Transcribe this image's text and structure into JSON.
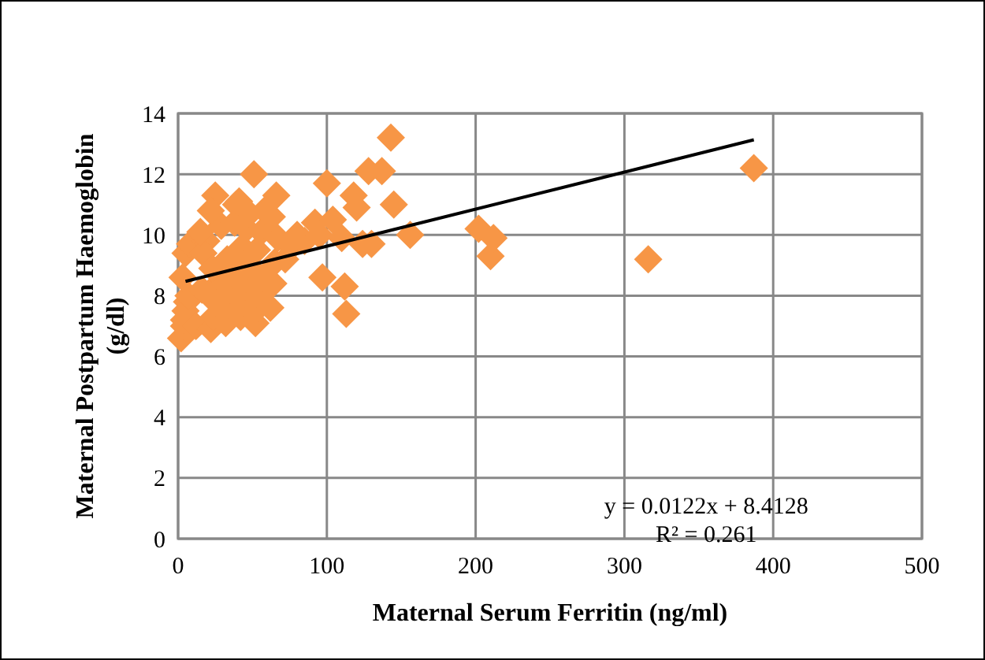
{
  "chart_data": {
    "type": "scatter",
    "xlabel": "Maternal Serum Ferritin (ng/ml)",
    "ylabel": "Maternal Postpartum Haemoglobin (g/dl)",
    "xlim": [
      0,
      500
    ],
    "ylim": [
      0,
      14
    ],
    "xticks": [
      0,
      100,
      200,
      300,
      400,
      500
    ],
    "yticks": [
      0,
      2,
      4,
      6,
      8,
      10,
      12,
      14
    ],
    "grid": true,
    "series": [
      {
        "color": "#f79646",
        "marker": "diamond",
        "x": [
          2,
          4,
          5,
          6,
          7,
          3,
          5,
          8,
          4,
          12,
          16,
          19,
          17,
          15,
          22,
          24,
          25,
          27,
          23,
          29,
          25,
          22,
          32,
          34,
          35,
          37,
          33,
          38,
          39,
          42,
          44,
          45,
          47,
          43,
          46,
          48,
          41,
          52,
          54,
          55,
          57,
          53,
          56,
          58,
          51,
          62,
          64,
          65,
          67,
          63,
          66,
          72,
          76,
          80,
          85,
          92,
          95,
          97,
          100,
          104,
          110,
          112,
          113,
          118,
          120,
          124,
          128,
          130,
          137,
          143,
          145,
          156,
          202,
          210,
          212,
          316,
          387
        ],
        "values": [
          6.6,
          7.0,
          7.5,
          7.8,
          8.0,
          8.6,
          9.4,
          9.7,
          7.2,
          7.0,
          8.2,
          9.8,
          9.4,
          10.1,
          6.9,
          7.3,
          7.8,
          8.4,
          8.9,
          10.3,
          11.3,
          10.8,
          7.1,
          7.7,
          8.2,
          8.7,
          9.2,
          10.4,
          11.0,
          7.3,
          7.8,
          8.3,
          9.0,
          9.6,
          10.2,
          10.7,
          11.1,
          7.1,
          7.6,
          8.1,
          8.6,
          9.5,
          10.1,
          10.8,
          12.0,
          7.6,
          8.4,
          9.1,
          9.9,
          10.6,
          11.3,
          9.2,
          9.6,
          10.0,
          9.8,
          10.4,
          10.0,
          8.6,
          11.7,
          10.5,
          9.9,
          8.3,
          7.4,
          11.3,
          10.9,
          9.7,
          12.1,
          9.7,
          12.1,
          13.2,
          11.0,
          10.0,
          10.2,
          9.3,
          9.9,
          9.2,
          12.2
        ]
      },
      {
        "type": "line",
        "color": "#000000",
        "x": [
          5,
          387
        ],
        "values": [
          8.47,
          13.13
        ]
      }
    ],
    "annotations": [
      "y = 0.0122x + 8.4128",
      "R² = 0.261"
    ]
  }
}
